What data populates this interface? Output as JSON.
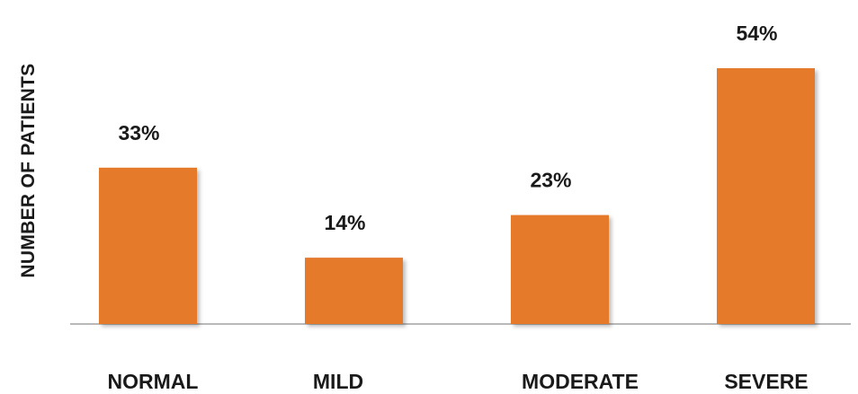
{
  "chart_data": {
    "type": "bar",
    "ylabel": "NUMBER OF PATIENTS",
    "xlabel": "",
    "categories": [
      "NORMAL",
      "MILD",
      "MODERATE",
      "SEVERE"
    ],
    "values": [
      33,
      14,
      23,
      54
    ],
    "value_labels": [
      "33%",
      "14%",
      "23%",
      "54%"
    ],
    "ylim": [
      0,
      60
    ],
    "grid": false,
    "legend": "none",
    "bar_color": "#E57A2B",
    "axis_color": "#b9b9b9"
  }
}
